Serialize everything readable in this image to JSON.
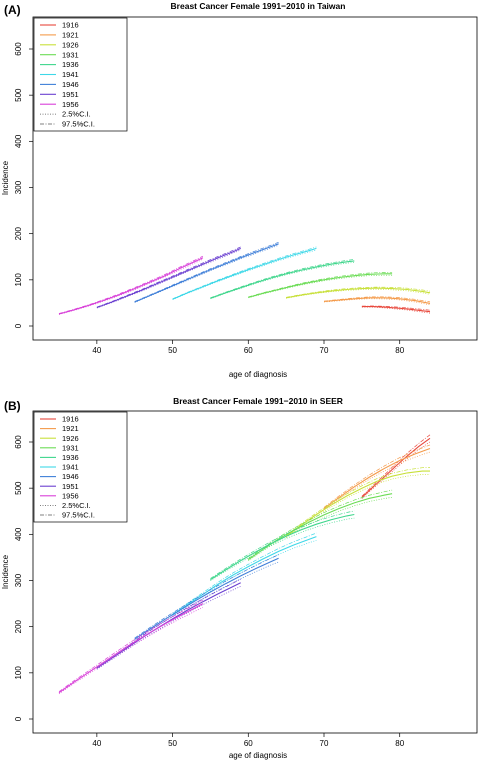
{
  "panels": [
    {
      "label": "(A)",
      "chart_data": {
        "type": "line",
        "title": "Breast Cancer Female 1991−2010 in Taiwan",
        "xlabel": "age of diagnosis",
        "ylabel": "Incidence",
        "xlim": [
          33,
          86
        ],
        "ylim": [
          0,
          650
        ],
        "x_ticks": [
          40,
          50,
          60,
          70,
          80
        ],
        "y_ticks": [
          0,
          100,
          200,
          300,
          400,
          500,
          600
        ],
        "legend_position": "top-left",
        "legend": [
          {
            "label": "1916",
            "color": "#e8483c",
            "style": "solid"
          },
          {
            "label": "1921",
            "color": "#f49a4a",
            "style": "solid"
          },
          {
            "label": "1926",
            "color": "#c8e03a",
            "style": "solid"
          },
          {
            "label": "1931",
            "color": "#6bdc55",
            "style": "solid"
          },
          {
            "label": "1936",
            "color": "#3fd68c",
            "style": "solid"
          },
          {
            "label": "1941",
            "color": "#3ed8e8",
            "style": "solid"
          },
          {
            "label": "1946",
            "color": "#3f7fd8",
            "style": "solid"
          },
          {
            "label": "1951",
            "color": "#6a3fd0",
            "style": "solid"
          },
          {
            "label": "1956",
            "color": "#d83fd8",
            "style": "solid"
          },
          {
            "label": "2.5%C.I.",
            "color": "#555555",
            "style": "dotted"
          },
          {
            "label": "97.5%C.I.",
            "color": "#555555",
            "style": "dotdash"
          }
        ],
        "series": [
          {
            "name": "1916",
            "color": "#e8483c",
            "x": [
              75,
              76.5,
              78,
              79.5,
              81,
              82.5,
              84
            ],
            "y": [
              42,
              42,
              41,
              39,
              37,
              34,
              31
            ]
          },
          {
            "name": "1921",
            "color": "#f49a4a",
            "x": [
              70,
              72,
              74,
              76,
              78,
              80,
              82,
              84
            ],
            "y": [
              53,
              56,
              59,
              61,
              61,
              59,
              55,
              49
            ]
          },
          {
            "name": "1926",
            "color": "#c8e03a",
            "x": [
              65,
              67,
              69,
              71,
              73,
              75,
              77,
              79,
              81,
              83,
              84
            ],
            "y": [
              61,
              67,
              72,
              76,
              79,
              81,
              82,
              81,
              79,
              75,
              72
            ]
          },
          {
            "name": "1931",
            "color": "#6bdc55",
            "x": [
              60,
              62,
              64,
              66,
              68,
              70,
              72,
              74,
              76,
              78,
              79
            ],
            "y": [
              62,
              71,
              79,
              87,
              94,
              100,
              105,
              109,
              112,
              113,
              113
            ]
          },
          {
            "name": "1936",
            "color": "#3fd68c",
            "x": [
              55,
              57,
              59,
              61,
              63,
              65,
              67,
              69,
              71,
              73,
              74
            ],
            "y": [
              60,
              72,
              83,
              94,
              104,
              113,
              121,
              128,
              134,
              139,
              141
            ]
          },
          {
            "name": "1941",
            "color": "#3ed8e8",
            "x": [
              50,
              52,
              54,
              56,
              58,
              60,
              62,
              64,
              66,
              68,
              69
            ],
            "y": [
              58,
              72,
              85,
              98,
              110,
              122,
              133,
              144,
              154,
              163,
              168
            ]
          },
          {
            "name": "1946",
            "color": "#3f7fd8",
            "x": [
              45,
              47,
              49,
              51,
              53,
              55,
              57,
              59,
              61,
              63,
              64
            ],
            "y": [
              52,
              66,
              80,
              94,
              108,
              122,
              135,
              148,
              160,
              172,
              178
            ]
          },
          {
            "name": "1951",
            "color": "#6a3fd0",
            "x": [
              40,
              42,
              44,
              46,
              48,
              50,
              52,
              54,
              56,
              58,
              59
            ],
            "y": [
              40,
              52,
              65,
              78,
              92,
              106,
              120,
              134,
              148,
              161,
              168
            ]
          },
          {
            "name": "1956",
            "color": "#d83fd8",
            "x": [
              35,
              37,
              39,
              41,
              43,
              45,
              47,
              49,
              51,
              53,
              54
            ],
            "y": [
              26,
              35,
              45,
              56,
              68,
              81,
              95,
              109,
              125,
              140,
              148
            ]
          }
        ]
      }
    },
    {
      "label": "(B)",
      "chart_data": {
        "type": "line",
        "title": "Breast Cancer Female 1991−2010 in SEER",
        "xlabel": "age of diagnosis",
        "ylabel": "Incidence",
        "xlim": [
          33,
          86
        ],
        "ylim": [
          0,
          650
        ],
        "x_ticks": [
          40,
          50,
          60,
          70,
          80
        ],
        "y_ticks": [
          0,
          100,
          200,
          300,
          400,
          500,
          600
        ],
        "legend_position": "top-left",
        "legend": [
          {
            "label": "1916",
            "color": "#e8483c",
            "style": "solid"
          },
          {
            "label": "1921",
            "color": "#f49a4a",
            "style": "solid"
          },
          {
            "label": "1926",
            "color": "#c8e03a",
            "style": "solid"
          },
          {
            "label": "1931",
            "color": "#6bdc55",
            "style": "solid"
          },
          {
            "label": "1936",
            "color": "#3fd68c",
            "style": "solid"
          },
          {
            "label": "1941",
            "color": "#3ed8e8",
            "style": "solid"
          },
          {
            "label": "1946",
            "color": "#3f7fd8",
            "style": "solid"
          },
          {
            "label": "1951",
            "color": "#6a3fd0",
            "style": "solid"
          },
          {
            "label": "1956",
            "color": "#d83fd8",
            "style": "solid"
          },
          {
            "label": "2.5%C.I.",
            "color": "#555555",
            "style": "dotted"
          },
          {
            "label": "97.5%C.I.",
            "color": "#555555",
            "style": "dotdash"
          }
        ],
        "series": [
          {
            "name": "1916",
            "color": "#e8483c",
            "x": [
              75,
              76.5,
              78,
              79.5,
              81,
              82.5,
              84
            ],
            "y": [
              480,
              503,
              525,
              548,
              570,
              590,
              608
            ]
          },
          {
            "name": "1921",
            "color": "#f49a4a",
            "x": [
              70,
              72,
              74,
              76,
              78,
              80,
              82,
              84
            ],
            "y": [
              456,
              480,
              503,
              524,
              543,
              560,
              574,
              586
            ]
          },
          {
            "name": "1926",
            "color": "#c8e03a",
            "x": [
              65,
              67,
              69,
              71,
              73,
              75,
              77,
              79,
              81,
              83,
              84
            ],
            "y": [
              395,
              420,
              443,
              464,
              483,
              500,
              515,
              526,
              533,
              537,
              537
            ]
          },
          {
            "name": "1931",
            "color": "#6bdc55",
            "x": [
              60,
              62,
              64,
              66,
              68,
              70,
              72,
              74,
              76,
              78,
              79
            ],
            "y": [
              345,
              368,
              390,
              409,
              426,
              442,
              456,
              468,
              478,
              485,
              488
            ]
          },
          {
            "name": "1936",
            "color": "#3fd68c",
            "x": [
              55,
              57,
              59,
              61,
              63,
              65,
              67,
              69,
              71,
              73,
              74
            ],
            "y": [
              302,
              323,
              343,
              362,
              380,
              396,
              410,
              422,
              432,
              440,
              443
            ]
          },
          {
            "name": "1941",
            "color": "#3ed8e8",
            "x": [
              50,
              52,
              54,
              56,
              58,
              60,
              62,
              64,
              66,
              68,
              69
            ],
            "y": [
              225,
              248,
              270,
              292,
              312,
              330,
              347,
              363,
              377,
              389,
              395
            ]
          },
          {
            "name": "1946",
            "color": "#3f7fd8",
            "x": [
              45,
              47,
              49,
              51,
              53,
              55,
              57,
              59,
              61,
              63,
              64
            ],
            "y": [
              173,
              195,
              216,
              236,
              256,
              275,
              293,
              310,
              326,
              341,
              348
            ]
          },
          {
            "name": "1951",
            "color": "#6a3fd0",
            "x": [
              40,
              42,
              44,
              46,
              48,
              50,
              52,
              54,
              56,
              58,
              59
            ],
            "y": [
              110,
              132,
              154,
              176,
              197,
              217,
              236,
              254,
              271,
              287,
              295
            ]
          },
          {
            "name": "1956",
            "color": "#d83fd8",
            "x": [
              35,
              37,
              39,
              41,
              43,
              45,
              47,
              49,
              51,
              53,
              54
            ],
            "y": [
              57,
              80,
              102,
              124,
              146,
              167,
              187,
              206,
              224,
              241,
              250
            ]
          }
        ]
      }
    }
  ]
}
